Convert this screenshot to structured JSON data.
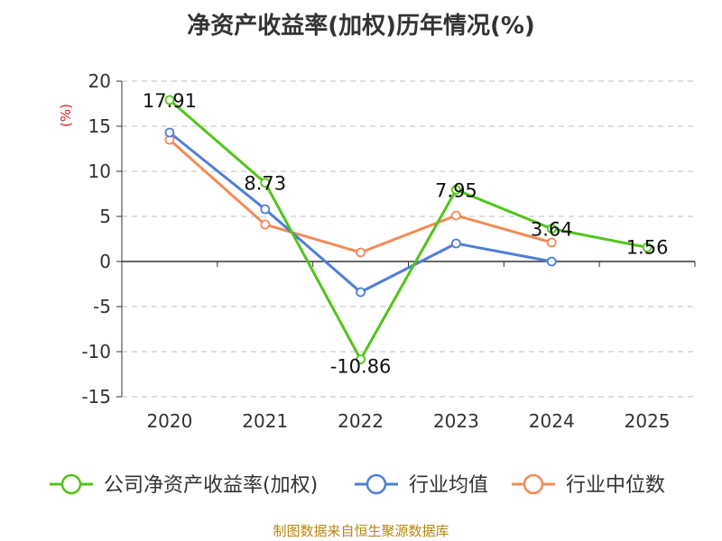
{
  "chart_data": {
    "type": "line",
    "title": "净资产收益率(加权)历年情况(%)",
    "ylabel": "(%)",
    "xlabel": "",
    "categories": [
      "2020",
      "2021",
      "2022",
      "2023",
      "2024",
      "2025"
    ],
    "ylim": [
      -15,
      20
    ],
    "yticks": [
      20,
      15,
      10,
      5,
      0,
      -5,
      -10,
      -15
    ],
    "series": [
      {
        "name": "公司净资产收益率(加权)",
        "color": "#52c41a",
        "values": [
          17.91,
          8.73,
          -10.86,
          7.95,
          3.64,
          1.56
        ],
        "labels": [
          "17.91",
          "8.73",
          "-10.86",
          "7.95",
          "3.64",
          "1.56"
        ]
      },
      {
        "name": "行业均值",
        "color": "#4e7fd6",
        "values": [
          14.3,
          5.8,
          -3.4,
          2.0,
          0.0,
          null
        ]
      },
      {
        "name": "行业中位数",
        "color": "#f28c57",
        "values": [
          13.5,
          4.1,
          1.0,
          5.1,
          2.1,
          null
        ]
      }
    ],
    "legend_position": "bottom",
    "grid": true
  },
  "source": "制图数据来自恒生聚源数据库"
}
